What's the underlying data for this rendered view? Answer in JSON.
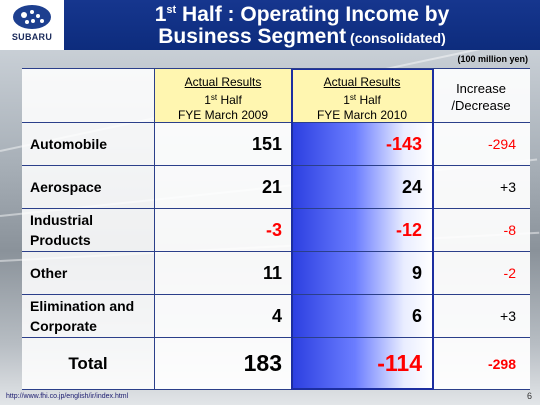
{
  "brand": {
    "name": "SUBARU",
    "emblem_color": "#1d3f8f"
  },
  "title": {
    "line1_prefix": "1",
    "line1_sup": "st",
    "line1_rest": " Half : Operating Income by",
    "line2_main": "Business Segment",
    "line2_sub": " (consolidated)"
  },
  "unit_note": "(100 million yen)",
  "columns": {
    "c2009": {
      "top": "Actual Results",
      "mid_prefix": "1",
      "mid_sup": "st",
      "mid_rest": " Half",
      "bottom": "FYE March 2009"
    },
    "c2010": {
      "top": "Actual Results",
      "mid_prefix": "1",
      "mid_sup": "st",
      "mid_rest": " Half",
      "bottom": "FYE March 2010"
    },
    "delta": {
      "line1": "Increase",
      "line2": "/Decrease"
    }
  },
  "rows": [
    {
      "label": "Automobile",
      "v2009": "151",
      "v2010": "-143",
      "delta": "-294"
    },
    {
      "label": "Aerospace",
      "v2009": "21",
      "v2010": "24",
      "delta": "+3"
    },
    {
      "label": "Industrial Products",
      "v2009": "-3",
      "v2010": "-12",
      "delta": "-8"
    },
    {
      "label": "Other",
      "v2009": "11",
      "v2010": "9",
      "delta": "-2"
    },
    {
      "label": "Elimination and Corporate",
      "v2009": "4",
      "v2010": "6",
      "delta": "+3"
    }
  ],
  "total": {
    "label": "Total",
    "v2009": "183",
    "v2010": "-114",
    "delta": "-298"
  },
  "footer": {
    "url": "http://www.fhi.co.jp/english/ir/index.html",
    "page": "6"
  },
  "colors": {
    "negative": "#ff0000",
    "title_band": "#16368e",
    "header_highlight": "#fff6b0"
  }
}
